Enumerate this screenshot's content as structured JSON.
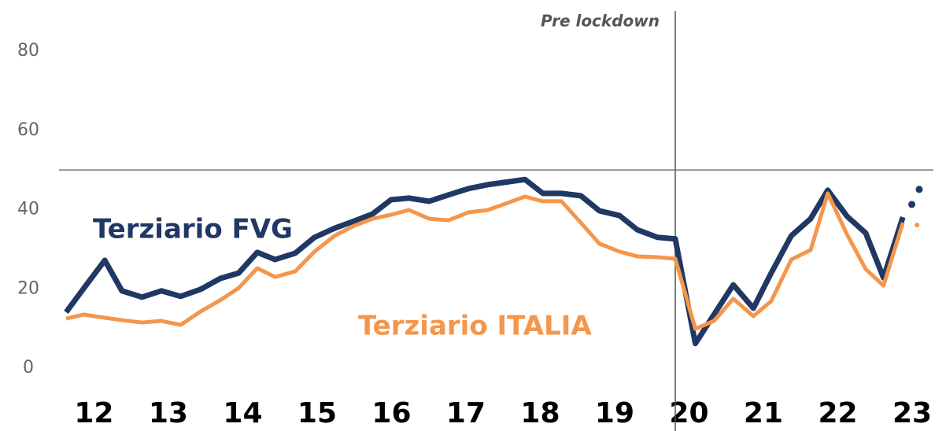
{
  "chart_data": {
    "type": "line",
    "xlim": [
      12,
      23.83
    ],
    "ylim": [
      0,
      80
    ],
    "yticks": [
      0,
      20,
      40,
      60,
      80
    ],
    "xticks": [
      {
        "value": 12.375,
        "label": "12"
      },
      {
        "value": 13.375,
        "label": "13"
      },
      {
        "value": 14.375,
        "label": "14"
      },
      {
        "value": 15.375,
        "label": "15"
      },
      {
        "value": 16.375,
        "label": "16"
      },
      {
        "value": 17.375,
        "label": "17"
      },
      {
        "value": 18.375,
        "label": "18"
      },
      {
        "value": 19.375,
        "label": "19"
      },
      {
        "value": 20.375,
        "label": "20"
      },
      {
        "value": 21.375,
        "label": "21"
      },
      {
        "value": 22.375,
        "label": "22"
      },
      {
        "value": 23.375,
        "label": "23"
      }
    ],
    "hline": 50,
    "vline": 20.19,
    "vline_label": "Pre lockdown",
    "series": [
      {
        "name": "Terziario FVG",
        "color": "#1f3864",
        "x": [
          12.0,
          12.24,
          12.52,
          12.75,
          13.02,
          13.28,
          13.54,
          13.81,
          14.07,
          14.32,
          14.57,
          14.81,
          15.08,
          15.34,
          15.61,
          15.87,
          16.12,
          16.37,
          16.61,
          16.88,
          17.14,
          17.41,
          17.67,
          17.94,
          18.17,
          18.41,
          18.66,
          18.92,
          19.17,
          19.44,
          19.68,
          19.95,
          20.19,
          20.46,
          20.71,
          20.97,
          21.24,
          21.48,
          21.75,
          22.01,
          22.24,
          22.5,
          22.75,
          22.99,
          23.25
        ],
        "values": [
          14.1,
          20.2,
          27.2,
          19.5,
          17.9,
          19.5,
          18.1,
          19.9,
          22.6,
          24.0,
          29.2,
          27.4,
          29.0,
          33.0,
          35.3,
          37.1,
          38.9,
          42.5,
          42.9,
          42.1,
          43.7,
          45.3,
          46.3,
          47.0,
          47.6,
          44.1,
          44.1,
          43.5,
          39.7,
          38.5,
          34.9,
          33.0,
          32.6,
          6.2,
          13.5,
          21.0,
          15.1,
          24.0,
          33.4,
          37.7,
          44.9,
          38.3,
          34.1,
          22.8,
          38.1
        ],
        "projection_x": [
          23.37,
          23.47
        ],
        "projection_values": [
          41.3,
          45.1
        ]
      },
      {
        "name": "Terziario ITALIA",
        "color": "#f4964b",
        "x": [
          12.0,
          12.24,
          12.52,
          12.75,
          13.02,
          13.28,
          13.54,
          13.81,
          14.07,
          14.32,
          14.57,
          14.81,
          15.08,
          15.34,
          15.61,
          15.87,
          16.12,
          16.37,
          16.61,
          16.88,
          17.14,
          17.41,
          17.67,
          17.94,
          18.17,
          18.41,
          18.66,
          18.92,
          19.17,
          19.44,
          19.68,
          19.95,
          20.19,
          20.46,
          20.71,
          20.97,
          21.24,
          21.48,
          21.75,
          22.01,
          22.24,
          22.5,
          22.75,
          22.99,
          23.25
        ],
        "values": [
          12.5,
          13.5,
          12.7,
          12.1,
          11.5,
          11.9,
          10.9,
          14.3,
          17.1,
          20.2,
          25.2,
          23.0,
          24.4,
          29.4,
          33.4,
          35.9,
          37.7,
          38.7,
          39.9,
          37.7,
          37.3,
          39.3,
          39.9,
          41.7,
          43.3,
          42.1,
          42.1,
          36.7,
          31.4,
          29.4,
          28.2,
          28.0,
          27.6,
          9.9,
          11.9,
          17.5,
          13.1,
          16.9,
          27.4,
          29.8,
          44.1,
          33.7,
          25.0,
          20.8,
          36.7
        ],
        "projection_x": [
          23.44
        ],
        "projection_values": [
          36.1
        ]
      }
    ]
  }
}
